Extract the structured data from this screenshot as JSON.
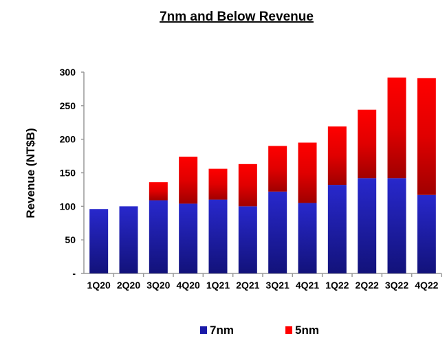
{
  "chart_data": {
    "type": "bar",
    "stacked": true,
    "title": "7nm and Below Revenue",
    "xlabel": "",
    "ylabel": "Revenue (NT$B)",
    "ylim": [
      0,
      300
    ],
    "yticks": [
      0,
      50,
      100,
      150,
      200,
      250,
      300
    ],
    "ytick_labels": [
      "-",
      "50",
      "100",
      "150",
      "200",
      "250",
      "300"
    ],
    "grid": false,
    "legend_position": "bottom",
    "categories": [
      "1Q20",
      "2Q20",
      "3Q20",
      "4Q20",
      "1Q21",
      "2Q21",
      "3Q21",
      "4Q21",
      "1Q22",
      "2Q22",
      "3Q22",
      "4Q22"
    ],
    "series": [
      {
        "name": "7nm",
        "color": "#2222c0",
        "values": [
          96,
          100,
          109,
          104,
          110,
          100,
          122,
          105,
          132,
          142,
          142,
          117
        ]
      },
      {
        "name": "5nm",
        "color": "#ff0000",
        "values": [
          0,
          0,
          27,
          70,
          46,
          63,
          68,
          90,
          87,
          102,
          150,
          174
        ]
      }
    ]
  }
}
